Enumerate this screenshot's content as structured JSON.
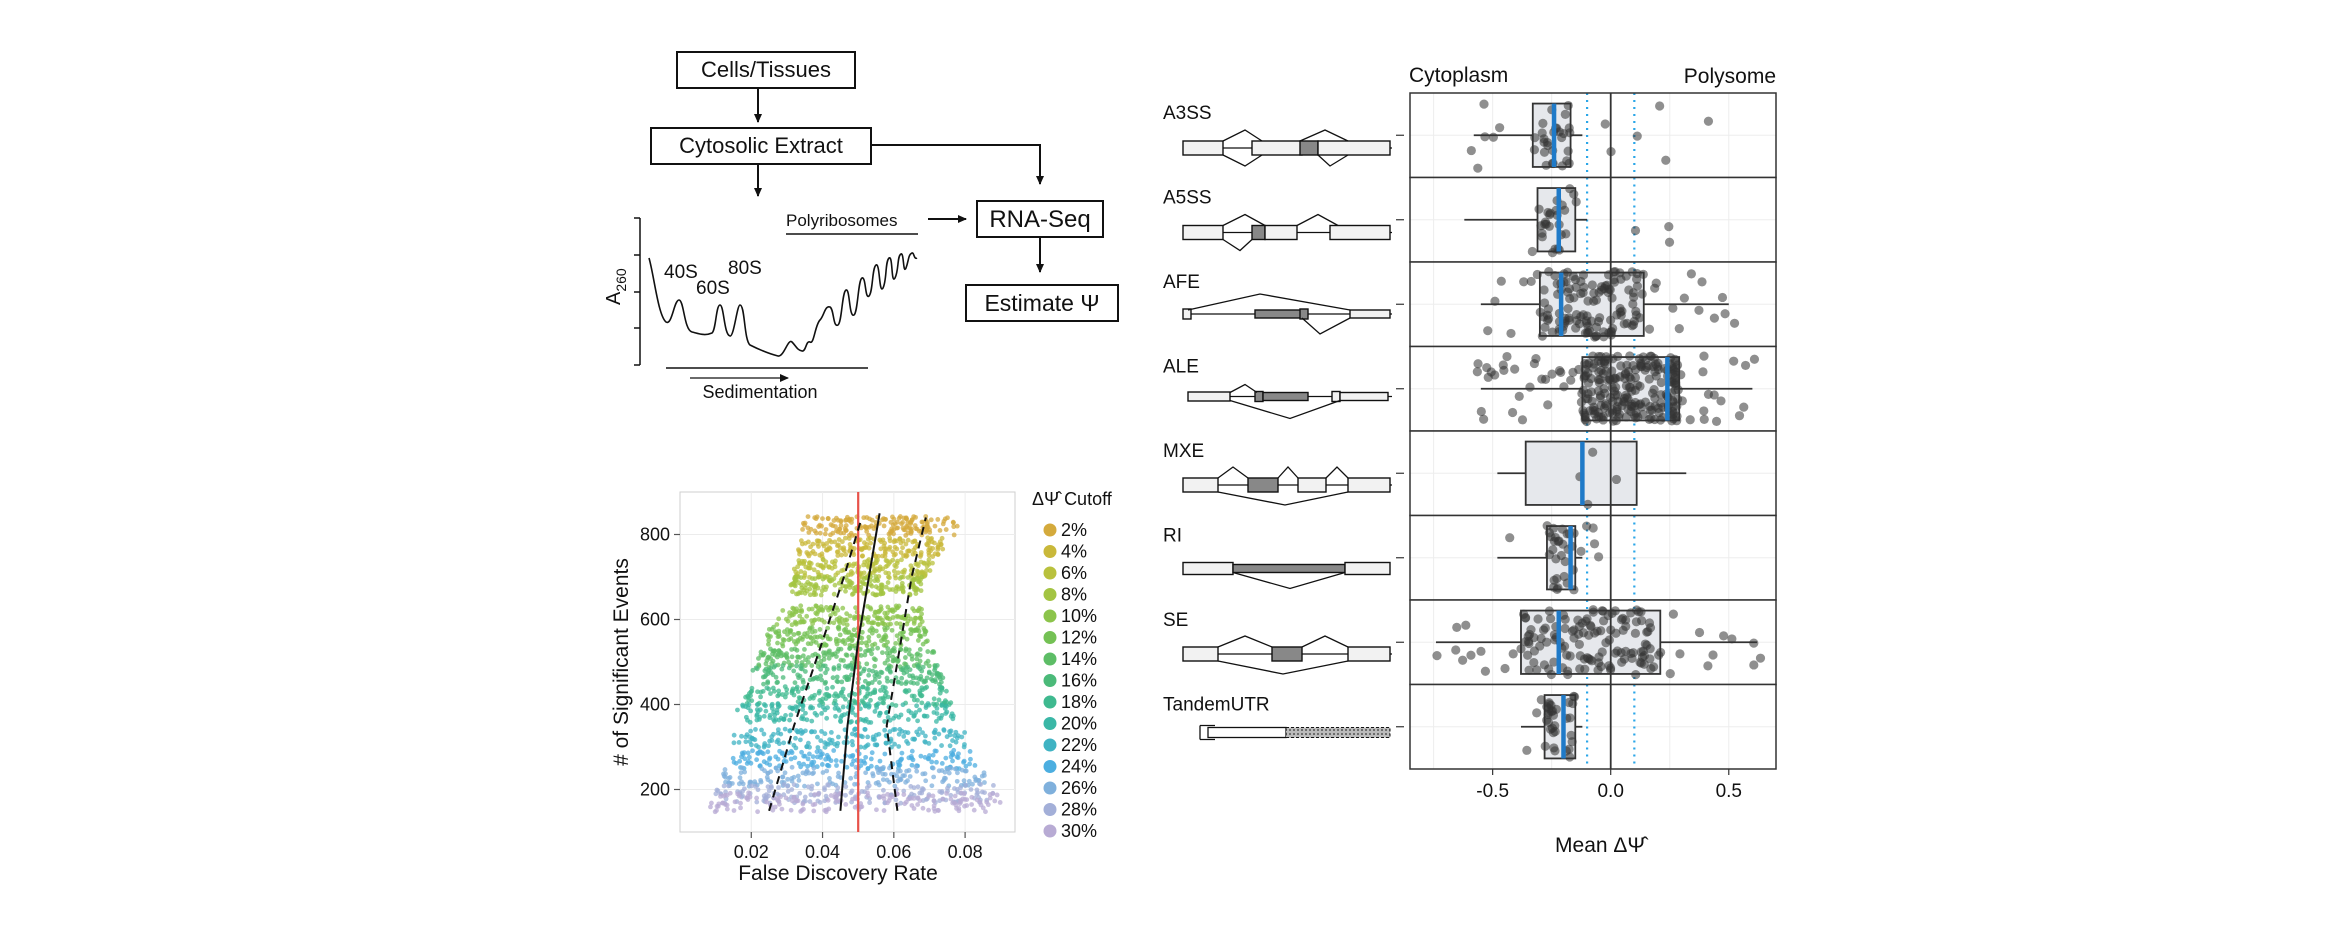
{
  "flowchart": {
    "cells_label": "Cells/Tissues",
    "extract_label": "Cytosolic Extract",
    "rnaseq_label": "RNA-Seq",
    "estimate_label": "Estimate Ψ",
    "polyribosomes_label": "Polyribosomes",
    "a260_label": "A",
    "a260_sub": "260",
    "peak_40s": "40S",
    "peak_60s": "60S",
    "peak_80s": "80S",
    "sedimentation_label": "Sedimentation"
  },
  "fdr_chart": {
    "chart_data": {
      "type": "scatter",
      "xlabel": "False Discovery Rate",
      "ylabel": "# of Significant Events",
      "xlim": [
        0.0,
        0.094
      ],
      "ylim": [
        100,
        900
      ],
      "xticks": [
        "0.02",
        "0.04",
        "0.06",
        "0.08"
      ],
      "yticks": [
        "200",
        "400",
        "600",
        "800"
      ],
      "vline_fdr": 0.05,
      "median_curve": [
        [
          0.045,
          150
        ],
        [
          0.047,
          350
        ],
        [
          0.05,
          550
        ],
        [
          0.053,
          700
        ],
        [
          0.056,
          850
        ]
      ],
      "lower_dashed": [
        [
          0.025,
          150
        ],
        [
          0.032,
          350
        ],
        [
          0.04,
          550
        ],
        [
          0.046,
          700
        ],
        [
          0.051,
          840
        ]
      ],
      "upper_dashed": [
        [
          0.061,
          150
        ],
        [
          0.058,
          350
        ],
        [
          0.062,
          550
        ],
        [
          0.065,
          700
        ],
        [
          0.069,
          840
        ]
      ],
      "legend_title": "ΔΨ̂ Cutoff",
      "cutoffs": [
        {
          "label": "2%",
          "color": "#d4aa3c",
          "center_y": 820,
          "xmin": 0.034,
          "xmax": 0.078
        },
        {
          "label": "4%",
          "color": "#c9b83a",
          "center_y": 770,
          "xmin": 0.033,
          "xmax": 0.074
        },
        {
          "label": "6%",
          "color": "#b9c13d",
          "center_y": 720,
          "xmin": 0.032,
          "xmax": 0.071
        },
        {
          "label": "8%",
          "color": "#a3c442",
          "center_y": 680,
          "xmin": 0.031,
          "xmax": 0.069
        },
        {
          "label": "10%",
          "color": "#8cc44b",
          "center_y": 610,
          "xmin": 0.027,
          "xmax": 0.068,
          "highlight": "#cc1f2a"
        },
        {
          "label": "12%",
          "color": "#74c154",
          "center_y": 560,
          "xmin": 0.024,
          "xmax": 0.07
        },
        {
          "label": "14%",
          "color": "#5dbd66",
          "center_y": 510,
          "xmin": 0.022,
          "xmax": 0.072
        },
        {
          "label": "16%",
          "color": "#4bba79",
          "center_y": 470,
          "xmin": 0.02,
          "xmax": 0.074
        },
        {
          "label": "18%",
          "color": "#3fb98f",
          "center_y": 420,
          "xmin": 0.018,
          "xmax": 0.076
        },
        {
          "label": "20%",
          "color": "#3ab7a6",
          "center_y": 380,
          "xmin": 0.016,
          "xmax": 0.078
        },
        {
          "label": "22%",
          "color": "#3fb3c3",
          "center_y": 320,
          "xmin": 0.015,
          "xmax": 0.08
        },
        {
          "label": "24%",
          "color": "#4caee0",
          "center_y": 270,
          "xmin": 0.014,
          "xmax": 0.083
        },
        {
          "label": "26%",
          "color": "#7fb0dc",
          "center_y": 230,
          "xmin": 0.012,
          "xmax": 0.086
        },
        {
          "label": "28%",
          "color": "#a3afd8",
          "center_y": 190,
          "xmin": 0.01,
          "xmax": 0.088
        },
        {
          "label": "30%",
          "color": "#b8abd4",
          "center_y": 170,
          "xmin": 0.008,
          "xmax": 0.09
        }
      ]
    }
  },
  "box_chart": {
    "chart_data": {
      "type": "box",
      "xlabel": "Mean ΔΨ̂",
      "xlim": [
        -0.85,
        0.7
      ],
      "xticks": [
        "-0.5",
        "0.0",
        "0.5"
      ],
      "left_title": "Cytoplasm",
      "right_title": "Polysome",
      "zero_line": 0.0,
      "dotted_lines": [
        -0.1,
        0.1
      ],
      "colors": {
        "box_fill": "#e6e8ec",
        "median": "#1f7ac8",
        "dotted": "#2aa6e8",
        "points": "#333333"
      },
      "events": [
        {
          "name": "A3SS",
          "q1": -0.33,
          "median": -0.24,
          "q3": -0.17,
          "wlo": -0.58,
          "whi": -0.12,
          "n": 40,
          "range": [
            -0.6,
            0.48
          ]
        },
        {
          "name": "A5SS",
          "q1": -0.31,
          "median": -0.22,
          "q3": -0.15,
          "wlo": -0.62,
          "whi": -0.1,
          "n": 30,
          "range": [
            -0.62,
            0.48
          ]
        },
        {
          "name": "AFE",
          "q1": -0.3,
          "median": -0.21,
          "q3": 0.14,
          "wlo": -0.55,
          "whi": 0.5,
          "n": 140,
          "range": [
            -0.55,
            0.55
          ]
        },
        {
          "name": "ALE",
          "q1": -0.12,
          "median": 0.24,
          "q3": 0.29,
          "wlo": -0.55,
          "whi": 0.6,
          "n": 260,
          "range": [
            -0.58,
            0.62
          ]
        },
        {
          "name": "MXE",
          "q1": -0.36,
          "median": -0.12,
          "q3": 0.11,
          "wlo": -0.48,
          "whi": 0.32,
          "n": 4,
          "range": [
            -0.48,
            0.32
          ]
        },
        {
          "name": "RI",
          "q1": -0.27,
          "median": -0.17,
          "q3": -0.15,
          "wlo": -0.48,
          "whi": -0.12,
          "n": 35,
          "range": [
            -0.5,
            0.32
          ]
        },
        {
          "name": "SE",
          "q1": -0.38,
          "median": -0.22,
          "q3": 0.21,
          "wlo": -0.74,
          "whi": 0.62,
          "n": 150,
          "range": [
            -0.76,
            0.65
          ]
        },
        {
          "name": "TandemUTR",
          "q1": -0.28,
          "median": -0.2,
          "q3": -0.15,
          "wlo": -0.38,
          "whi": -0.12,
          "n": 35,
          "range": [
            -0.38,
            -0.12
          ]
        }
      ]
    }
  }
}
